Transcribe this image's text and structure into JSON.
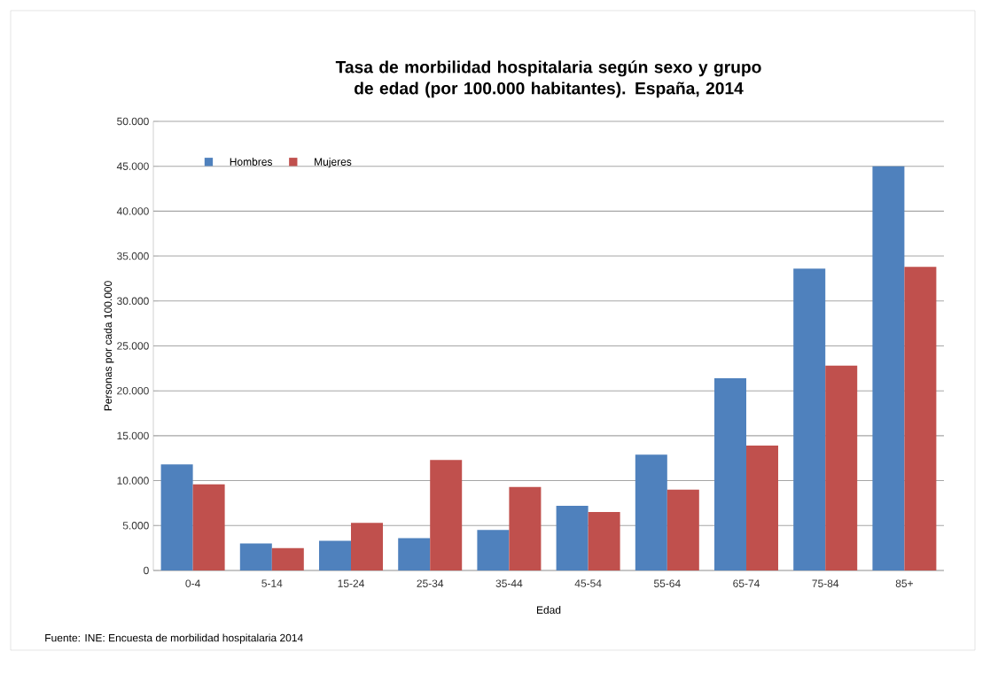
{
  "chart_data": {
    "type": "bar",
    "title": "Tasa de morbilidad hospitalaria según sexo y grupo de edad (por 100.000 habitantes). España, 2014",
    "xlabel": "Edad",
    "ylabel": "Personas por cada 100.000",
    "categories": [
      "0-4",
      "5-14",
      "15-24",
      "25-34",
      "35-44",
      "45-54",
      "55-64",
      "65-74",
      "75-84",
      "85+"
    ],
    "series": [
      {
        "name": "Hombres",
        "color": "#4f81bd",
        "values": [
          11800,
          3000,
          3300,
          3600,
          4500,
          7200,
          12900,
          21400,
          33600,
          45000
        ]
      },
      {
        "name": "Mujeres",
        "color": "#c0504d",
        "values": [
          9600,
          2500,
          5300,
          12300,
          9300,
          6500,
          9000,
          13900,
          22800,
          33800
        ]
      }
    ],
    "ylim": [
      0,
      50000
    ],
    "yticks": [
      0,
      {
        "value": 5000,
        "label": "5.000"
      },
      {
        "value": 10000,
        "label": "10.000"
      },
      {
        "value": 15000,
        "label": "15.000"
      },
      {
        "value": 20000,
        "label": "20.000"
      },
      {
        "value": 25000,
        "label": "25.000"
      },
      {
        "value": 30000,
        "label": "30.000"
      },
      {
        "value": 35000,
        "label": "35.000"
      },
      {
        "value": 40000,
        "label": "40.000"
      },
      {
        "value": 45000,
        "label": "45.000"
      },
      {
        "value": 50000,
        "label": "50.000"
      }
    ],
    "grid": "y",
    "legend": "top left",
    "annotations": [
      "Fuente: INE: Encuesta de morbilidad hospitalaria 2014"
    ]
  }
}
